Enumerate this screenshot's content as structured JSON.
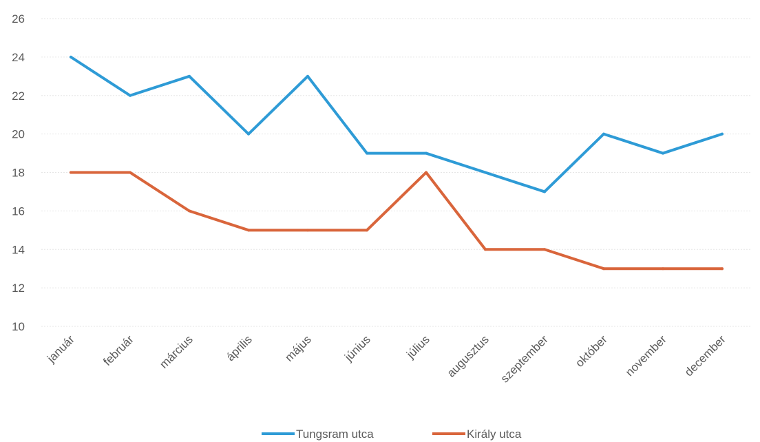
{
  "chart_data": {
    "type": "line",
    "categories": [
      "január",
      "február",
      "március",
      "április",
      "május",
      "június",
      "július",
      "augusztus",
      "szeptember",
      "október",
      "november",
      "december"
    ],
    "series": [
      {
        "name": "Tungsram utca",
        "color": "#2e9bd6",
        "values": [
          24,
          22,
          23,
          20,
          23,
          19,
          19,
          18,
          17,
          20,
          19,
          20
        ]
      },
      {
        "name": "Király utca",
        "color": "#d9653b",
        "values": [
          18,
          18,
          16,
          15,
          15,
          15,
          18,
          14,
          14,
          13,
          13,
          13
        ]
      }
    ],
    "title": "",
    "xlabel": "",
    "ylabel": "",
    "ylim": [
      10,
      26
    ],
    "yticks": [
      10,
      12,
      14,
      16,
      18,
      20,
      22,
      24,
      26
    ],
    "grid": true,
    "legend_position": "bottom"
  }
}
